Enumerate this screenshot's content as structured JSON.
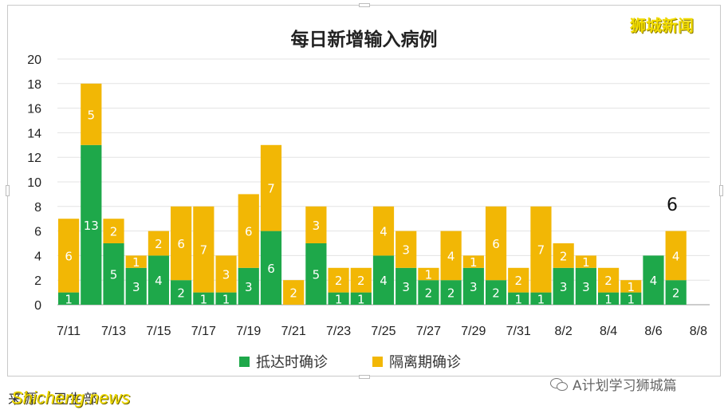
{
  "brand": "狮城新闻",
  "watermark_source": "Shicheng.news",
  "footnote": "来源：卫生部",
  "wechat_account": "A计划学习狮城篇",
  "annotation": "6",
  "colors": {
    "arrival": "#1ea84a",
    "quarantine": "#f2b705",
    "grid": "#e3e3e3"
  },
  "chart_data": {
    "type": "bar",
    "stacked": true,
    "title": "每日新增输入病例",
    "xlabel": "",
    "ylabel": "",
    "ylim": [
      0,
      20
    ],
    "yticks": [
      0,
      2,
      4,
      6,
      8,
      10,
      12,
      14,
      16,
      18,
      20
    ],
    "grid": true,
    "legend_position": "bottom",
    "categories": [
      "7/11",
      "7/12",
      "7/13",
      "7/14",
      "7/15",
      "7/16",
      "7/17",
      "7/18",
      "7/19",
      "7/20",
      "7/21",
      "7/22",
      "7/23",
      "7/24",
      "7/25",
      "7/26",
      "7/27",
      "7/28",
      "7/29",
      "7/30",
      "7/31",
      "8/1",
      "8/2",
      "8/3",
      "8/4",
      "8/5",
      "8/6",
      "8/7",
      "8/8"
    ],
    "xtick_labels": [
      "7/11",
      "",
      "7/13",
      "",
      "7/15",
      "",
      "7/17",
      "",
      "7/19",
      "",
      "7/21",
      "",
      "7/23",
      "",
      "7/25",
      "",
      "7/27",
      "",
      "7/29",
      "",
      "7/31",
      "",
      "8/2",
      "",
      "8/4",
      "",
      "8/6",
      "",
      "8/8"
    ],
    "series": [
      {
        "name": "抵达时确诊",
        "values": [
          1,
          13,
          5,
          3,
          4,
          2,
          1,
          1,
          3,
          6,
          0,
          5,
          1,
          1,
          4,
          3,
          2,
          2,
          3,
          2,
          1,
          1,
          3,
          3,
          1,
          1,
          4,
          2,
          0
        ]
      },
      {
        "name": "隔离期确诊",
        "values": [
          6,
          5,
          2,
          1,
          2,
          6,
          7,
          3,
          6,
          7,
          2,
          3,
          2,
          2,
          4,
          3,
          1,
          4,
          1,
          6,
          2,
          7,
          2,
          1,
          2,
          1,
          0,
          4,
          0
        ]
      }
    ]
  }
}
